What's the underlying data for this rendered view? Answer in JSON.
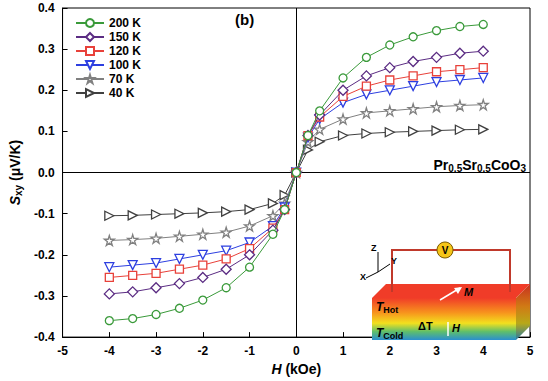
{
  "chart_data": {
    "type": "line",
    "panel_label": "(b)",
    "annotation": "Pr0.5Sr0.5CoO3",
    "x_label": "H (kOe)",
    "y_label": "Sxy (μV/K)",
    "x": [
      -4,
      -3.5,
      -3,
      -2.5,
      -2,
      -1.5,
      -1,
      -0.5,
      -0.25,
      0,
      0.25,
      0.5,
      1,
      1.5,
      2,
      2.5,
      3,
      3.5,
      4
    ],
    "series": [
      {
        "name": "200 K",
        "color": "#3a9a3a",
        "marker": "circle",
        "values": [
          -0.36,
          -0.355,
          -0.345,
          -0.33,
          -0.31,
          -0.28,
          -0.23,
          -0.15,
          -0.09,
          0,
          0.09,
          0.15,
          0.23,
          0.28,
          0.31,
          0.33,
          0.345,
          0.355,
          0.36
        ]
      },
      {
        "name": "150 K",
        "color": "#5b2c83",
        "marker": "diamond",
        "values": [
          -0.295,
          -0.29,
          -0.28,
          -0.27,
          -0.255,
          -0.235,
          -0.2,
          -0.14,
          -0.09,
          0,
          0.09,
          0.14,
          0.2,
          0.235,
          0.255,
          0.27,
          0.28,
          0.29,
          0.295
        ]
      },
      {
        "name": "120 K",
        "color": "#e8413a",
        "marker": "square",
        "values": [
          -0.255,
          -0.25,
          -0.245,
          -0.235,
          -0.225,
          -0.21,
          -0.185,
          -0.135,
          -0.09,
          0,
          0.09,
          0.135,
          0.185,
          0.21,
          0.225,
          0.235,
          0.245,
          0.25,
          0.255
        ]
      },
      {
        "name": "100 K",
        "color": "#2d3fe0",
        "marker": "triangle_down",
        "values": [
          -0.23,
          -0.225,
          -0.22,
          -0.21,
          -0.2,
          -0.19,
          -0.17,
          -0.13,
          -0.085,
          0,
          0.085,
          0.13,
          0.17,
          0.19,
          0.2,
          0.21,
          0.22,
          0.225,
          0.23
        ]
      },
      {
        "name": "70 K",
        "color": "#808080",
        "marker": "star",
        "values": [
          -0.165,
          -0.163,
          -0.16,
          -0.155,
          -0.15,
          -0.145,
          -0.13,
          -0.105,
          -0.075,
          0,
          0.075,
          0.105,
          0.13,
          0.145,
          0.15,
          0.155,
          0.16,
          0.163,
          0.165
        ]
      },
      {
        "name": "40 K",
        "color": "#404040",
        "marker": "triangle_right",
        "values": [
          -0.105,
          -0.104,
          -0.102,
          -0.1,
          -0.098,
          -0.095,
          -0.09,
          -0.075,
          -0.055,
          0,
          0.055,
          0.075,
          0.09,
          0.095,
          0.098,
          0.1,
          0.102,
          0.104,
          0.105
        ]
      }
    ],
    "xlim": [
      -5,
      5
    ],
    "xticks": [
      -5,
      -4,
      -3,
      -2,
      -1,
      0,
      1,
      2,
      3,
      4,
      5
    ],
    "ylim": [
      -0.4,
      0.4
    ],
    "yticks": [
      -0.4,
      -0.3,
      -0.2,
      -0.1,
      {
        "value": 0,
        "label": "0.0"
      },
      0.1,
      0.2,
      0.3,
      0.4
    ],
    "grid": false,
    "legend": "top-left",
    "inset": {
      "axes": [
        "X",
        "Y",
        "Z"
      ],
      "meter": "V",
      "hot": "THot",
      "cold": "TCold",
      "gradient": "ΔT",
      "field": "H",
      "magnetization": "M"
    }
  }
}
